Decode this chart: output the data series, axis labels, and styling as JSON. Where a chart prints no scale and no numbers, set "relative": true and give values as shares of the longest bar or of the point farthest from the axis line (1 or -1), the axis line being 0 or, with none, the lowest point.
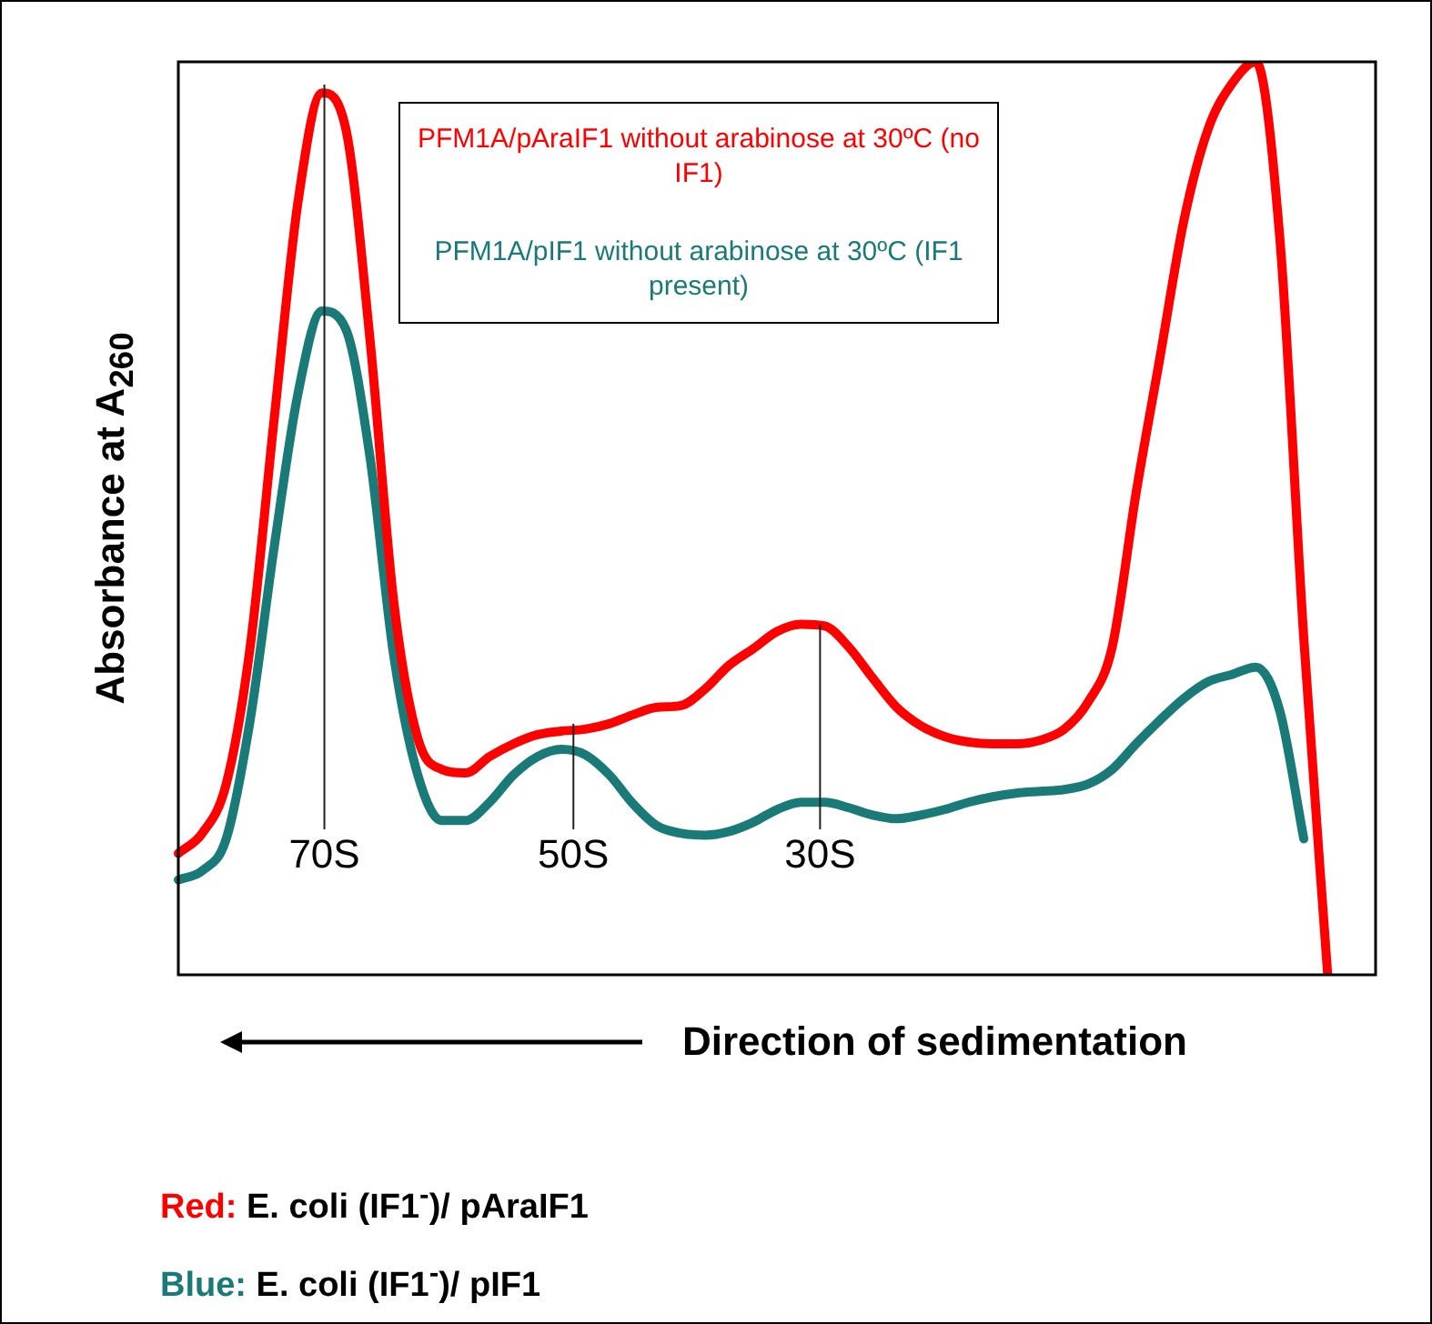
{
  "chart_data": {
    "type": "line",
    "relative": true,
    "ylabel": "Absorbance at A$_{260}$",
    "xlabel": "Direction of sedimentation",
    "legend": "top",
    "marker": "none",
    "line_style": "solid",
    "categories": [
      null,
      null,
      null,
      null,
      null,
      null,
      null,
      null,
      null,
      null,
      null,
      null,
      null,
      null,
      null,
      null,
      null,
      null,
      null,
      null,
      null,
      null,
      null,
      null,
      null,
      null,
      null,
      null,
      null,
      null,
      null,
      null,
      null,
      null,
      null,
      null,
      null,
      null,
      null,
      null,
      null,
      null,
      null,
      null,
      null,
      null,
      null,
      null,
      null,
      null,
      null
    ],
    "series": [
      {
        "name": "PFM1A/pAraIF1 without arabinose at 30ºC (no IF1)",
        "color": "#ff0000",
        "values": [
          0.133,
          0.155,
          0.209,
          0.359,
          0.608,
          0.847,
          0.966,
          0.926,
          0.697,
          0.408,
          0.259,
          0.225,
          0.221,
          0.239,
          0.253,
          0.263,
          0.267,
          0.269,
          0.275,
          0.285,
          0.293,
          0.295,
          0.313,
          0.339,
          0.357,
          0.376,
          0.384,
          0.382,
          0.359,
          0.325,
          0.293,
          0.273,
          0.261,
          0.255,
          0.253,
          0.253,
          0.257,
          0.269,
          0.299,
          0.359,
          0.528,
          0.677,
          0.827,
          0.926,
          0.976,
          1,
          0.807,
          0.369,
          0,
          null,
          null
        ]
      },
      {
        "name": "PFM1A/pIF1 without arabinose at 30ºC (IF1 present)",
        "color": "#1a7a78",
        "values": [
          0.104,
          0.114,
          0.149,
          0.279,
          0.468,
          0.637,
          0.727,
          0.707,
          0.568,
          0.349,
          0.219,
          0.169,
          0.169,
          0.189,
          0.219,
          0.239,
          0.247,
          0.241,
          0.219,
          0.187,
          0.163,
          0.155,
          0.153,
          0.157,
          0.167,
          0.181,
          0.189,
          0.189,
          0.183,
          0.175,
          0.171,
          0.175,
          0.181,
          0.189,
          0.195,
          0.199,
          0.201,
          0.203,
          0.209,
          0.225,
          0.253,
          0.279,
          0.303,
          0.321,
          0.329,
          0.337,
          0.289,
          0.149,
          null,
          null,
          null
        ]
      }
    ],
    "annotations": [
      "70S",
      "50S",
      "30S",
      "Red: E. coli (IF1$^{-}$)/ pAraIF1",
      "Blue: E. coli (IF1$^{-}$)/ pIF1"
    ]
  }
}
